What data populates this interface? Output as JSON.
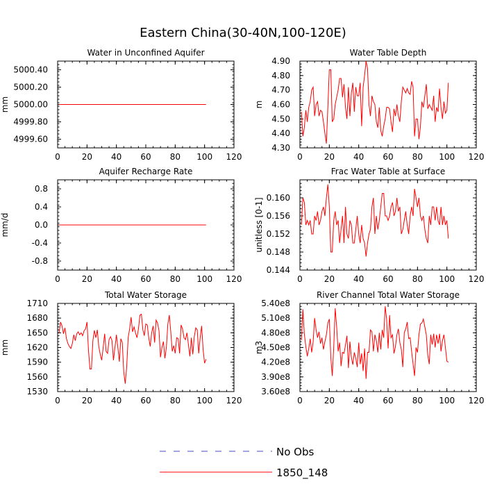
{
  "title": "Eastern China(30-40N,100-120E)",
  "legend": [
    {
      "label": "No Obs",
      "color": "#4a4ac8",
      "dash": true
    },
    {
      "label": "1850_148",
      "color": "#ff0000",
      "dash": false
    }
  ],
  "chart_data": [
    {
      "type": "line",
      "title": "Water in Unconfined Aquifer",
      "ylabel": "mm",
      "xlim": [
        0,
        120
      ],
      "xticks": [
        0,
        20,
        40,
        60,
        80,
        100,
        120
      ],
      "ylim": [
        4999.5,
        5000.5
      ],
      "yticks": [
        "4999.60",
        "4999.80",
        "5000.00",
        "5000.20",
        "5000.40"
      ],
      "ytick_values": [
        4999.6,
        4999.8,
        5000.0,
        5000.2,
        5000.4
      ],
      "series": [
        {
          "name": "1850_148",
          "color": "#ff0000",
          "x": [
            1,
            101
          ],
          "y": [
            5000.0,
            5000.0
          ]
        }
      ]
    },
    {
      "type": "line",
      "title": "Water Table Depth",
      "ylabel": "m",
      "xlim": [
        0,
        120
      ],
      "xticks": [
        0,
        20,
        40,
        60,
        80,
        100,
        120
      ],
      "ylim": [
        4.3,
        4.9
      ],
      "yticks": [
        "4.30",
        "4.40",
        "4.50",
        "4.60",
        "4.70",
        "4.80",
        "4.90"
      ],
      "ytick_values": [
        4.3,
        4.4,
        4.5,
        4.6,
        4.7,
        4.8,
        4.9
      ],
      "series": [
        {
          "name": "1850_148",
          "color": "#ff0000",
          "x": [
            1,
            2,
            3,
            4,
            5,
            6,
            7,
            8,
            9,
            10,
            11,
            12,
            13,
            14,
            15,
            16,
            17,
            18,
            19,
            20,
            21,
            22,
            23,
            24,
            25,
            26,
            27,
            28,
            29,
            30,
            31,
            32,
            33,
            34,
            35,
            36,
            37,
            38,
            39,
            40,
            41,
            42,
            43,
            44,
            45,
            46,
            47,
            48,
            49,
            50,
            51,
            52,
            53,
            54,
            55,
            56,
            57,
            58,
            59,
            60,
            61,
            62,
            63,
            64,
            65,
            66,
            67,
            68,
            69,
            70,
            71,
            72,
            73,
            74,
            75,
            76,
            77,
            78,
            79,
            80,
            81,
            82,
            83,
            84,
            85,
            86,
            87,
            88,
            89,
            90,
            91,
            92,
            93,
            94,
            95,
            96,
            97,
            98,
            99,
            100,
            101
          ],
          "y": [
            4.55,
            4.38,
            4.44,
            4.56,
            4.48,
            4.58,
            4.62,
            4.7,
            4.72,
            4.52,
            4.6,
            4.62,
            4.52,
            4.56,
            4.55,
            4.48,
            4.4,
            4.33,
            4.58,
            4.84,
            4.84,
            4.48,
            4.5,
            4.6,
            4.65,
            4.7,
            4.78,
            4.78,
            4.65,
            4.74,
            4.58,
            4.5,
            4.72,
            4.52,
            4.68,
            4.75,
            4.55,
            4.72,
            4.66,
            4.66,
            4.75,
            4.45,
            4.72,
            4.8,
            4.9,
            4.85,
            4.6,
            4.52,
            4.66,
            4.62,
            4.6,
            4.48,
            4.44,
            4.58,
            4.42,
            4.38,
            4.45,
            4.5,
            4.58,
            4.58,
            4.57,
            4.48,
            4.41,
            4.57,
            4.52,
            4.6,
            4.52,
            4.48,
            4.62,
            4.72,
            4.7,
            4.68,
            4.71,
            4.68,
            4.67,
            4.76,
            4.72,
            4.38,
            4.5,
            4.5,
            4.36,
            4.45,
            4.62,
            4.58,
            4.66,
            4.74,
            4.57,
            4.6,
            4.58,
            4.56,
            4.66,
            4.48,
            4.58,
            4.55,
            4.71,
            4.58,
            4.5,
            4.62,
            4.54,
            4.56,
            4.75
          ]
        }
      ]
    },
    {
      "type": "line",
      "title": "Aquifer Recharge Rate",
      "ylabel": "mm/d",
      "xlim": [
        0,
        120
      ],
      "xticks": [
        0,
        20,
        40,
        60,
        80,
        100,
        120
      ],
      "ylim": [
        -1,
        1
      ],
      "yticks": [
        "-0.8",
        "-0.4",
        "0.0",
        "0.4",
        "0.8"
      ],
      "ytick_values": [
        -0.8,
        -0.4,
        0.0,
        0.4,
        0.8
      ],
      "series": [
        {
          "name": "1850_148",
          "color": "#ff0000",
          "x": [
            1,
            101
          ],
          "y": [
            0.0,
            0.0
          ]
        }
      ]
    },
    {
      "type": "line",
      "title": "Frac Water Table at Surface",
      "ylabel": "unitless [0-1]",
      "xlim": [
        0,
        120
      ],
      "xticks": [
        0,
        20,
        40,
        60,
        80,
        100,
        120
      ],
      "ylim": [
        0.144,
        0.164
      ],
      "yticks": [
        "0.144",
        "0.148",
        "0.152",
        "0.156",
        "0.160"
      ],
      "ytick_values": [
        0.144,
        0.148,
        0.152,
        0.156,
        0.16
      ],
      "series": [
        {
          "name": "1850_148",
          "color": "#ff0000",
          "x": [
            1,
            2,
            3,
            4,
            5,
            6,
            7,
            8,
            9,
            10,
            11,
            12,
            13,
            14,
            15,
            16,
            17,
            18,
            19,
            20,
            21,
            22,
            23,
            24,
            25,
            26,
            27,
            28,
            29,
            30,
            31,
            32,
            33,
            34,
            35,
            36,
            37,
            38,
            39,
            40,
            41,
            42,
            43,
            44,
            45,
            46,
            47,
            48,
            49,
            50,
            51,
            52,
            53,
            54,
            55,
            56,
            57,
            58,
            59,
            60,
            61,
            62,
            63,
            64,
            65,
            66,
            67,
            68,
            69,
            70,
            71,
            72,
            73,
            74,
            75,
            76,
            77,
            78,
            79,
            80,
            81,
            82,
            83,
            84,
            85,
            86,
            87,
            88,
            89,
            90,
            91,
            92,
            93,
            94,
            95,
            96,
            97,
            98,
            99,
            100,
            101
          ],
          "y": [
            0.154,
            0.16,
            0.159,
            0.154,
            0.155,
            0.154,
            0.155,
            0.152,
            0.152,
            0.156,
            0.155,
            0.157,
            0.154,
            0.155,
            0.157,
            0.158,
            0.156,
            0.16,
            0.163,
            0.158,
            0.148,
            0.148,
            0.155,
            0.157,
            0.154,
            0.155,
            0.15,
            0.153,
            0.156,
            0.15,
            0.158,
            0.152,
            0.151,
            0.155,
            0.154,
            0.15,
            0.15,
            0.153,
            0.156,
            0.152,
            0.15,
            0.154,
            0.151,
            0.15,
            0.147,
            0.15,
            0.152,
            0.153,
            0.158,
            0.16,
            0.152,
            0.156,
            0.153,
            0.155,
            0.158,
            0.161,
            0.161,
            0.156,
            0.156,
            0.155,
            0.156,
            0.158,
            0.159,
            0.156,
            0.157,
            0.16,
            0.157,
            0.158,
            0.152,
            0.153,
            0.155,
            0.157,
            0.154,
            0.152,
            0.156,
            0.158,
            0.156,
            0.162,
            0.16,
            0.158,
            0.16,
            0.156,
            0.155,
            0.156,
            0.153,
            0.151,
            0.15,
            0.156,
            0.154,
            0.158,
            0.158,
            0.155,
            0.158,
            0.155,
            0.154,
            0.158,
            0.154,
            0.156,
            0.154,
            0.155,
            0.151
          ]
        }
      ]
    },
    {
      "type": "line",
      "title": "Total Water Storage",
      "ylabel": "mm",
      "xlim": [
        0,
        120
      ],
      "xticks": [
        0,
        20,
        40,
        60,
        80,
        100,
        120
      ],
      "ylim": [
        1530,
        1710
      ],
      "yticks": [
        "1530",
        "1560",
        "1590",
        "1620",
        "1650",
        "1680",
        "1710"
      ],
      "ytick_values": [
        1530,
        1560,
        1590,
        1620,
        1650,
        1680,
        1710
      ],
      "series": [
        {
          "name": "1850_148",
          "color": "#ff0000",
          "x": [
            1,
            2,
            3,
            4,
            5,
            6,
            7,
            8,
            9,
            10,
            11,
            12,
            13,
            14,
            15,
            16,
            17,
            18,
            19,
            20,
            21,
            22,
            23,
            24,
            25,
            26,
            27,
            28,
            29,
            30,
            31,
            32,
            33,
            34,
            35,
            36,
            37,
            38,
            39,
            40,
            41,
            42,
            43,
            44,
            45,
            46,
            47,
            48,
            49,
            50,
            51,
            52,
            53,
            54,
            55,
            56,
            57,
            58,
            59,
            60,
            61,
            62,
            63,
            64,
            65,
            66,
            67,
            68,
            69,
            70,
            71,
            72,
            73,
            74,
            75,
            76,
            77,
            78,
            79,
            80,
            81,
            82,
            83,
            84,
            85,
            86,
            87,
            88,
            89,
            90,
            91,
            92,
            93,
            94,
            95,
            96,
            97,
            98,
            99,
            100,
            101
          ],
          "y": [
            1650,
            1672,
            1664,
            1648,
            1660,
            1638,
            1628,
            1622,
            1618,
            1628,
            1646,
            1634,
            1648,
            1652,
            1646,
            1650,
            1644,
            1654,
            1658,
            1672,
            1614,
            1576,
            1576,
            1634,
            1655,
            1640,
            1656,
            1622,
            1606,
            1594,
            1620,
            1648,
            1612,
            1608,
            1636,
            1642,
            1634,
            1594,
            1620,
            1646,
            1620,
            1591,
            1638,
            1630,
            1570,
            1546,
            1580,
            1640,
            1658,
            1682,
            1652,
            1662,
            1650,
            1640,
            1658,
            1686,
            1688,
            1656,
            1644,
            1668,
            1666,
            1640,
            1622,
            1650,
            1664,
            1630,
            1676,
            1670,
            1654,
            1600,
            1620,
            1632,
            1598,
            1620,
            1668,
            1686,
            1652,
            1612,
            1624,
            1608,
            1640,
            1638,
            1608,
            1666,
            1658,
            1640,
            1636,
            1650,
            1626,
            1602,
            1640,
            1606,
            1642,
            1660,
            1656,
            1608,
            1640,
            1664,
            1616,
            1588,
            1596
          ]
        }
      ]
    },
    {
      "type": "line",
      "title": "River Channel Total Water Storage",
      "ylabel": "m3",
      "xlim": [
        0,
        120
      ],
      "xticks": [
        0,
        20,
        40,
        60,
        80,
        100,
        120
      ],
      "ylim": [
        360000000,
        540000000
      ],
      "yticks": [
        "3.60e8",
        "3.90e8",
        "4.20e8",
        "4.50e8",
        "4.80e8",
        "5.10e8",
        "5.40e8"
      ],
      "ytick_values": [
        360000000,
        390000000,
        420000000,
        450000000,
        480000000,
        510000000,
        540000000
      ],
      "series": [
        {
          "name": "1850_148",
          "color": "#ff0000",
          "x": [
            1,
            2,
            3,
            4,
            5,
            6,
            7,
            8,
            9,
            10,
            11,
            12,
            13,
            14,
            15,
            16,
            17,
            18,
            19,
            20,
            21,
            22,
            23,
            24,
            25,
            26,
            27,
            28,
            29,
            30,
            31,
            32,
            33,
            34,
            35,
            36,
            37,
            38,
            39,
            40,
            41,
            42,
            43,
            44,
            45,
            46,
            47,
            48,
            49,
            50,
            51,
            52,
            53,
            54,
            55,
            56,
            57,
            58,
            59,
            60,
            61,
            62,
            63,
            64,
            65,
            66,
            67,
            68,
            69,
            70,
            71,
            72,
            73,
            74,
            75,
            76,
            77,
            78,
            79,
            80,
            81,
            82,
            83,
            84,
            85,
            86,
            87,
            88,
            89,
            90,
            91,
            92,
            93,
            94,
            95,
            96,
            97,
            98,
            99,
            100,
            101
          ],
          "y": [
            465000000,
            528000000,
            478000000,
            452000000,
            432000000,
            448000000,
            468000000,
            440000000,
            462000000,
            510000000,
            486000000,
            470000000,
            482000000,
            458000000,
            470000000,
            446000000,
            462000000,
            476000000,
            500000000,
            508000000,
            430000000,
            392000000,
            450000000,
            530000000,
            492000000,
            442000000,
            460000000,
            412000000,
            440000000,
            438000000,
            455000000,
            474000000,
            408000000,
            462000000,
            430000000,
            415000000,
            440000000,
            428000000,
            410000000,
            460000000,
            416000000,
            438000000,
            402000000,
            448000000,
            386000000,
            440000000,
            440000000,
            486000000,
            482000000,
            442000000,
            476000000,
            464000000,
            440000000,
            480000000,
            446000000,
            486000000,
            470000000,
            534000000,
            508000000,
            448000000,
            516000000,
            470000000,
            476000000,
            438000000,
            452000000,
            476000000,
            488000000,
            460000000,
            446000000,
            410000000,
            480000000,
            488000000,
            502000000,
            468000000,
            470000000,
            442000000,
            416000000,
            392000000,
            450000000,
            440000000,
            476000000,
            498000000,
            500000000,
            508000000,
            492000000,
            476000000,
            434000000,
            416000000,
            476000000,
            456000000,
            478000000,
            450000000,
            476000000,
            458000000,
            478000000,
            442000000,
            464000000,
            476000000,
            450000000,
            422000000,
            420000000
          ]
        }
      ]
    }
  ]
}
